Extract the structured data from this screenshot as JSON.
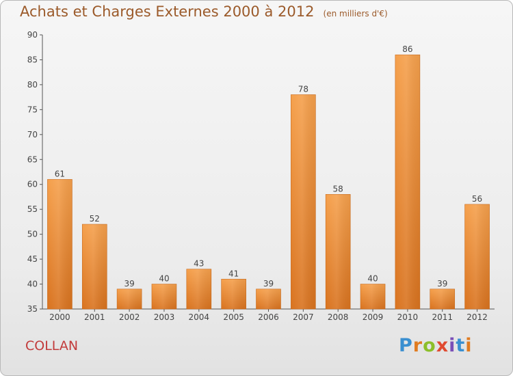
{
  "header": {
    "title": "Achats et Charges Externes 2000 à 2012",
    "unit": "(en milliers d'€)"
  },
  "footer": {
    "commune": "COLLAN",
    "logo_text": "Proxiti",
    "logo_colors": [
      "#3a8fd0",
      "#e07b20",
      "#8cbf2a",
      "#e04a30",
      "#7a4fb8",
      "#3a8fd0",
      "#e07b20"
    ]
  },
  "colors": {
    "bar_top": "#f5a04c",
    "bar_bottom": "#d9731f",
    "title": "#9b5a2a",
    "commune": "#c23a3a",
    "axis_text": "#444444",
    "grid": "#cccccc"
  },
  "chart_data": {
    "type": "bar",
    "title": "Achats et Charges Externes 2000 à 2012",
    "subtitle": "(en milliers d'€)",
    "categories": [
      "2000",
      "2001",
      "2002",
      "2003",
      "2004",
      "2005",
      "2006",
      "2007",
      "2008",
      "2009",
      "2010",
      "2011",
      "2012"
    ],
    "values": [
      61,
      52,
      39,
      40,
      43,
      41,
      39,
      78,
      58,
      40,
      86,
      39,
      56
    ],
    "ylim": [
      35,
      90
    ],
    "yticks": [
      35,
      40,
      45,
      50,
      55,
      60,
      65,
      70,
      75,
      80,
      85,
      90
    ],
    "grid": false,
    "data_labels": true
  }
}
